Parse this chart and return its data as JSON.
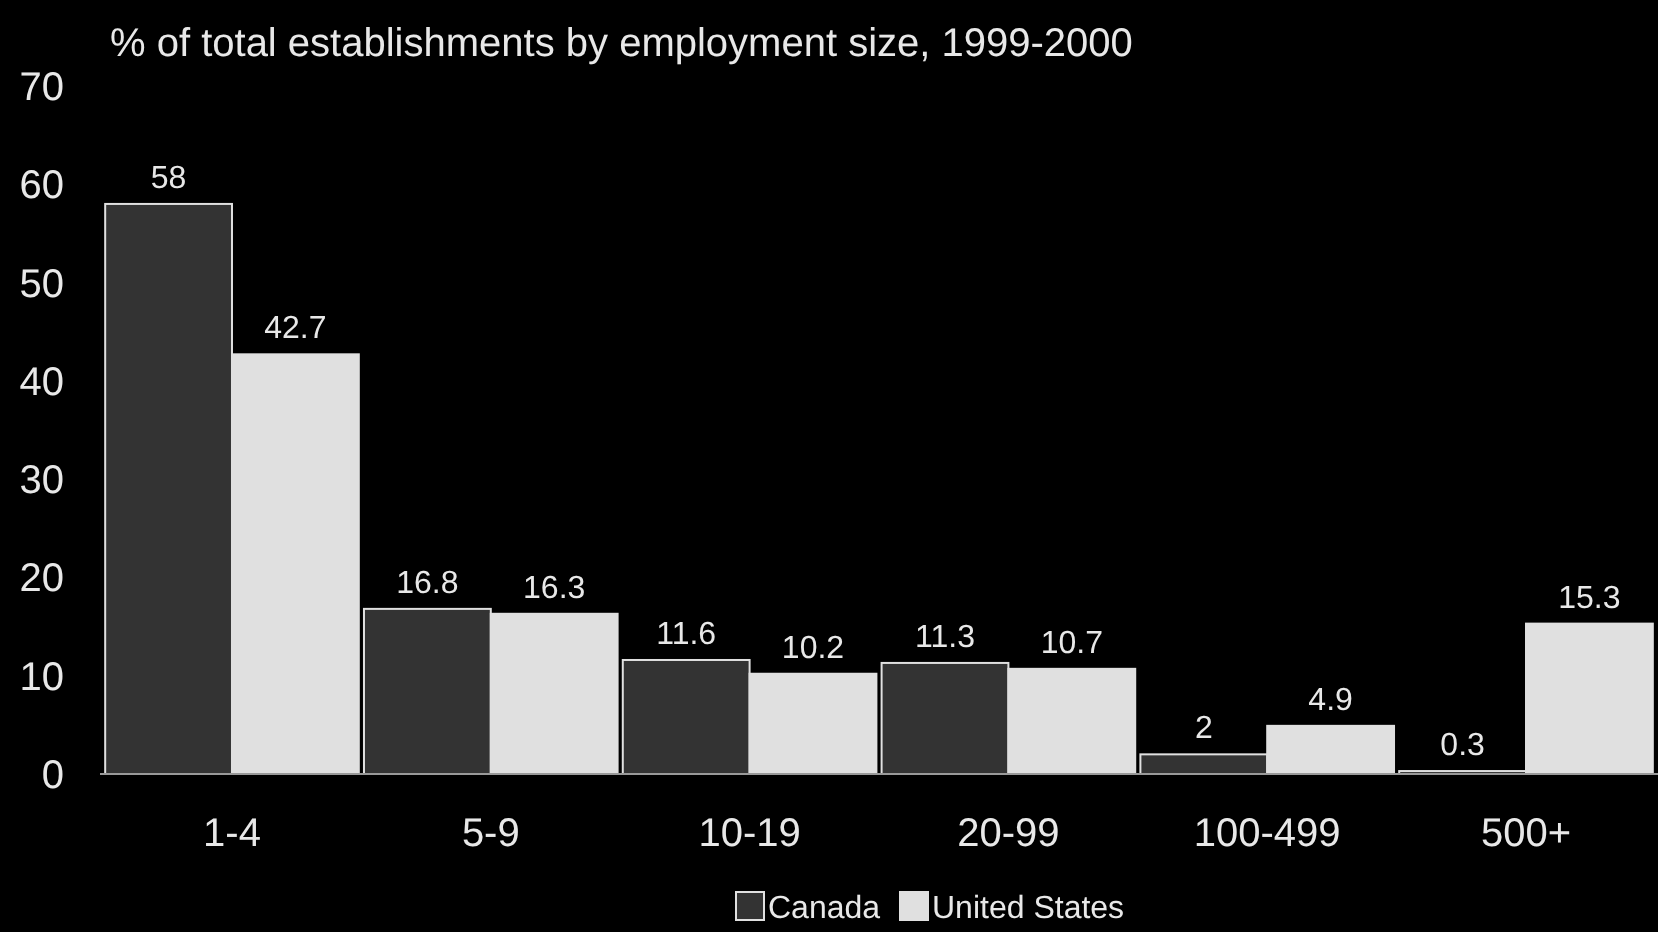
{
  "chart_data": {
    "type": "bar",
    "title": "% of total establishments by employment size, 1999-2000",
    "categories": [
      "1-4",
      "5-9",
      "10-19",
      "20-99",
      "100-499",
      "500+"
    ],
    "series": [
      {
        "name": "Canada",
        "color": "#333333",
        "values": [
          58,
          16.8,
          11.6,
          11.3,
          2,
          0.3
        ]
      },
      {
        "name": "United States",
        "color": "#e0e0e0",
        "values": [
          42.7,
          16.3,
          10.2,
          10.7,
          4.9,
          15.3
        ]
      }
    ],
    "ylim": [
      0,
      70
    ],
    "yticks": [
      0,
      10,
      20,
      30,
      40,
      50,
      60,
      70
    ],
    "grid": false,
    "data_labels": true,
    "legend": "bottom"
  }
}
